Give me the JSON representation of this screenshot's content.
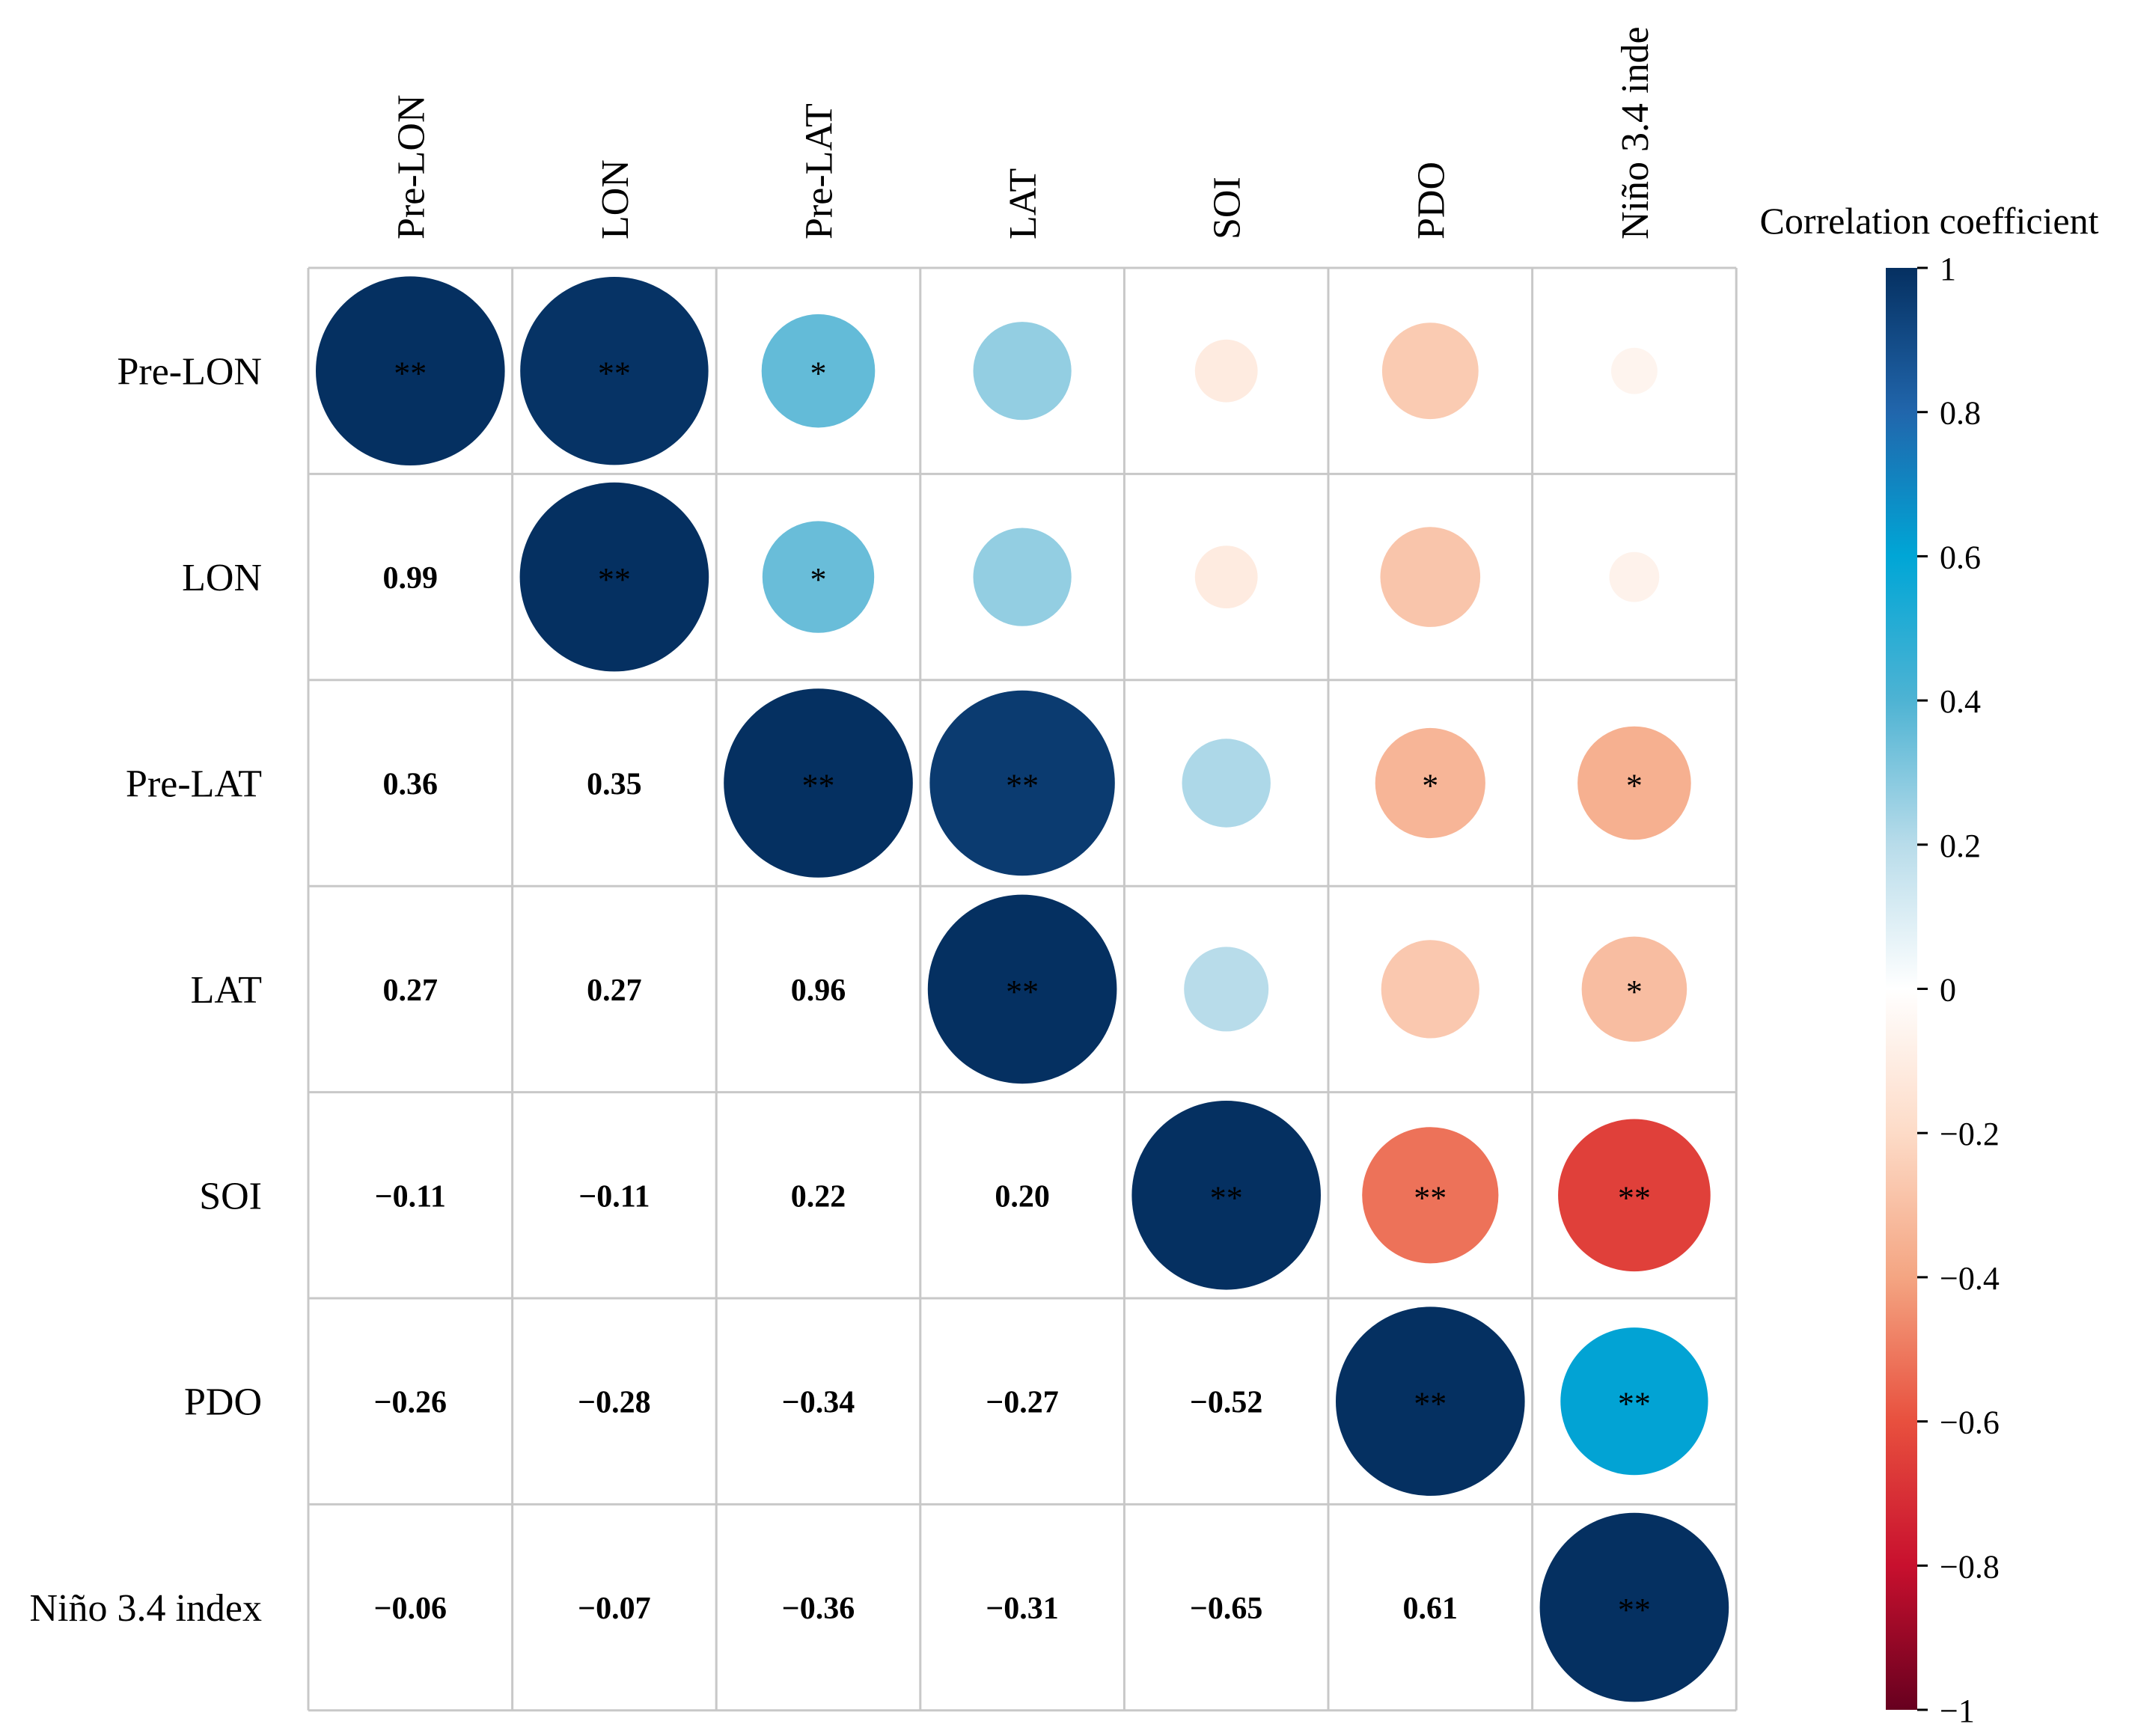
{
  "chart_data": {
    "type": "heatmap",
    "subtype": "correlation-matrix",
    "variables": [
      "Pre-LON",
      "LON",
      "Pre-LAT",
      "LAT",
      "SOI",
      "PDO",
      "Niño 3.4 index"
    ],
    "column_labels": [
      "Pre-LON",
      "LON",
      "Pre-LAT",
      "LAT",
      "SOI",
      "PDO",
      "Niño 3.4 inde"
    ],
    "matrix": [
      [
        1.0,
        0.99,
        0.36,
        0.27,
        -0.11,
        -0.26,
        -0.06
      ],
      [
        0.99,
        1.0,
        0.35,
        0.27,
        -0.11,
        -0.28,
        -0.07
      ],
      [
        0.36,
        0.35,
        1.0,
        0.96,
        0.22,
        -0.34,
        -0.36
      ],
      [
        0.27,
        0.27,
        0.96,
        1.0,
        0.2,
        -0.27,
        -0.31
      ],
      [
        -0.11,
        -0.11,
        0.22,
        0.2,
        1.0,
        -0.52,
        -0.65
      ],
      [
        -0.26,
        -0.28,
        -0.34,
        -0.27,
        -0.52,
        1.0,
        0.61
      ],
      [
        -0.06,
        -0.07,
        -0.36,
        -0.31,
        -0.65,
        0.61,
        1.0
      ]
    ],
    "value_labels": [
      [
        "",
        "",
        "",
        "",
        "",
        "",
        ""
      ],
      [
        "0.99",
        "",
        "",
        "",
        "",
        "",
        ""
      ],
      [
        "0.36",
        "0.35",
        "",
        "",
        "",
        "",
        ""
      ],
      [
        "0.27",
        "0.27",
        "0.96",
        "",
        "",
        "",
        ""
      ],
      [
        "−0.11",
        "−0.11",
        "0.22",
        "0.20",
        "",
        "",
        ""
      ],
      [
        "−0.26",
        "−0.28",
        "−0.34",
        "−0.27",
        "−0.52",
        "",
        ""
      ],
      [
        "−0.06",
        "−0.07",
        "−0.36",
        "−0.31",
        "−0.65",
        "0.61",
        ""
      ]
    ],
    "significance": [
      [
        "**",
        "**",
        "*",
        "",
        "",
        "",
        ""
      ],
      [
        "",
        "**",
        "*",
        "",
        "",
        "",
        ""
      ],
      [
        "",
        "",
        "**",
        "**",
        "",
        "*",
        "*"
      ],
      [
        "",
        "",
        "",
        "**",
        "",
        "",
        "*"
      ],
      [
        "",
        "",
        "",
        "",
        "**",
        "**",
        "**"
      ],
      [
        "",
        "",
        "",
        "",
        "",
        "**",
        "**"
      ],
      [
        "",
        "",
        "",
        "",
        "",
        "",
        "**"
      ]
    ],
    "lower_triangle": "numbers",
    "upper_triangle": "circles",
    "colorbar": {
      "title": "Correlation coefficient",
      "range": [
        -1,
        1
      ],
      "ticks": [
        1,
        0.8,
        0.6,
        0.4,
        0.2,
        0,
        -0.2,
        -0.4,
        -0.6,
        -0.8,
        -1
      ],
      "tick_labels": [
        "1",
        "0.8",
        "0.6",
        "0.4",
        "0.2",
        "0",
        "−0.2",
        "−0.4",
        "−0.6",
        "−0.8",
        "−1"
      ],
      "colors": [
        "#67001f",
        "#b2182b",
        "#d6604d",
        "#f4a582",
        "#fddbc7",
        "#ffffff",
        "#d1e5f0",
        "#92c5de",
        "#4393c3",
        "#2166ac",
        "#053061"
      ]
    }
  }
}
